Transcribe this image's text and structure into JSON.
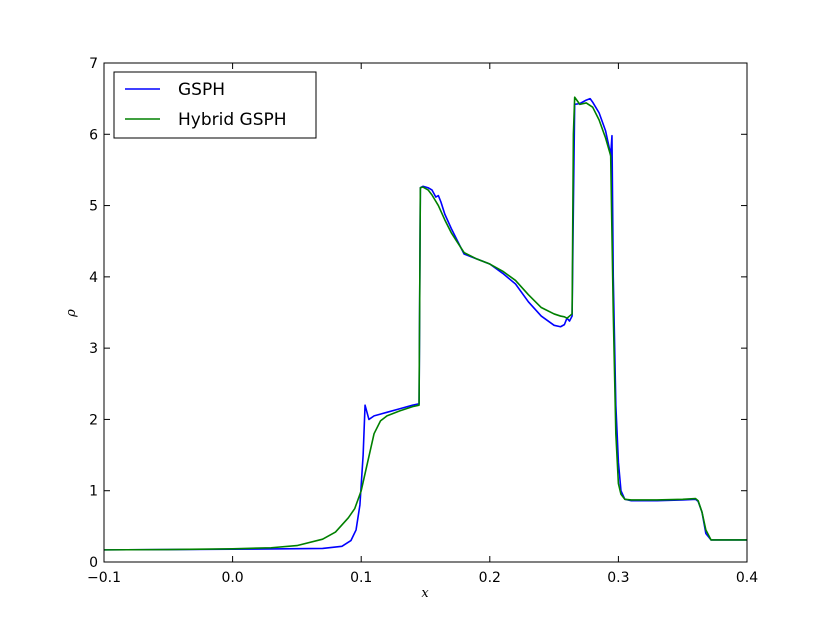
{
  "chart_data": {
    "type": "line",
    "title": "",
    "xlabel": "x",
    "ylabel": "ρ",
    "xlim": [
      -0.1,
      0.4
    ],
    "ylim": [
      0,
      7
    ],
    "xticks": [
      -0.1,
      0.0,
      0.1,
      0.2,
      0.3,
      0.4
    ],
    "xtick_labels": [
      "−0.1",
      "0.0",
      "0.1",
      "0.2",
      "0.3",
      "0.4"
    ],
    "yticks": [
      0,
      1,
      2,
      3,
      4,
      5,
      6,
      7
    ],
    "ytick_labels": [
      "0",
      "1",
      "2",
      "3",
      "4",
      "5",
      "6",
      "7"
    ],
    "grid": false,
    "legend_position": "top-left",
    "series": [
      {
        "name": "GSPH",
        "color": "#0000ff",
        "x": [
          -0.1,
          -0.05,
          0.0,
          0.04,
          0.07,
          0.085,
          0.092,
          0.096,
          0.099,
          0.1015,
          0.103,
          0.106,
          0.11,
          0.12,
          0.13,
          0.14,
          0.145,
          0.146,
          0.148,
          0.152,
          0.155,
          0.158,
          0.16,
          0.162,
          0.165,
          0.17,
          0.175,
          0.18,
          0.19,
          0.2,
          0.21,
          0.22,
          0.23,
          0.24,
          0.25,
          0.255,
          0.258,
          0.26,
          0.262,
          0.264,
          0.265,
          0.266,
          0.27,
          0.275,
          0.278,
          0.28,
          0.285,
          0.29,
          0.293,
          0.294,
          0.295,
          0.296,
          0.298,
          0.3,
          0.302,
          0.305,
          0.31,
          0.33,
          0.35,
          0.36,
          0.362,
          0.365,
          0.368,
          0.372,
          0.38,
          0.4
        ],
        "y": [
          0.17,
          0.175,
          0.18,
          0.185,
          0.19,
          0.22,
          0.3,
          0.45,
          0.8,
          1.5,
          2.2,
          2.0,
          2.05,
          2.1,
          2.15,
          2.2,
          2.22,
          5.25,
          5.27,
          5.25,
          5.22,
          5.12,
          5.14,
          5.05,
          4.88,
          4.68,
          4.5,
          4.32,
          4.25,
          4.18,
          4.05,
          3.9,
          3.65,
          3.45,
          3.32,
          3.3,
          3.33,
          3.42,
          3.38,
          3.45,
          5.0,
          6.42,
          6.43,
          6.48,
          6.5,
          6.45,
          6.3,
          6.05,
          5.8,
          5.7,
          5.98,
          4.0,
          2.2,
          1.4,
          1.0,
          0.88,
          0.86,
          0.86,
          0.87,
          0.88,
          0.85,
          0.7,
          0.4,
          0.31,
          0.31,
          0.31
        ]
      },
      {
        "name": "Hybrid GSPH",
        "color": "#008000",
        "x": [
          -0.1,
          -0.05,
          0.0,
          0.03,
          0.05,
          0.07,
          0.08,
          0.09,
          0.095,
          0.1,
          0.105,
          0.11,
          0.115,
          0.12,
          0.13,
          0.14,
          0.145,
          0.146,
          0.148,
          0.152,
          0.155,
          0.16,
          0.165,
          0.17,
          0.175,
          0.18,
          0.19,
          0.2,
          0.21,
          0.22,
          0.23,
          0.24,
          0.25,
          0.255,
          0.258,
          0.26,
          0.262,
          0.264,
          0.265,
          0.266,
          0.27,
          0.275,
          0.28,
          0.285,
          0.29,
          0.294,
          0.296,
          0.298,
          0.3,
          0.302,
          0.305,
          0.31,
          0.33,
          0.35,
          0.36,
          0.362,
          0.365,
          0.368,
          0.372,
          0.38,
          0.4
        ],
        "y": [
          0.17,
          0.175,
          0.185,
          0.2,
          0.23,
          0.32,
          0.42,
          0.62,
          0.75,
          1.0,
          1.4,
          1.8,
          1.98,
          2.05,
          2.12,
          2.18,
          2.2,
          5.25,
          5.26,
          5.22,
          5.15,
          5.0,
          4.8,
          4.62,
          4.48,
          4.34,
          4.25,
          4.18,
          4.08,
          3.95,
          3.75,
          3.57,
          3.48,
          3.45,
          3.44,
          3.42,
          3.45,
          3.48,
          6.0,
          6.52,
          6.42,
          6.44,
          6.38,
          6.2,
          5.95,
          5.7,
          3.5,
          1.8,
          1.1,
          0.95,
          0.88,
          0.87,
          0.87,
          0.88,
          0.89,
          0.86,
          0.7,
          0.45,
          0.31,
          0.31,
          0.31
        ]
      }
    ]
  }
}
